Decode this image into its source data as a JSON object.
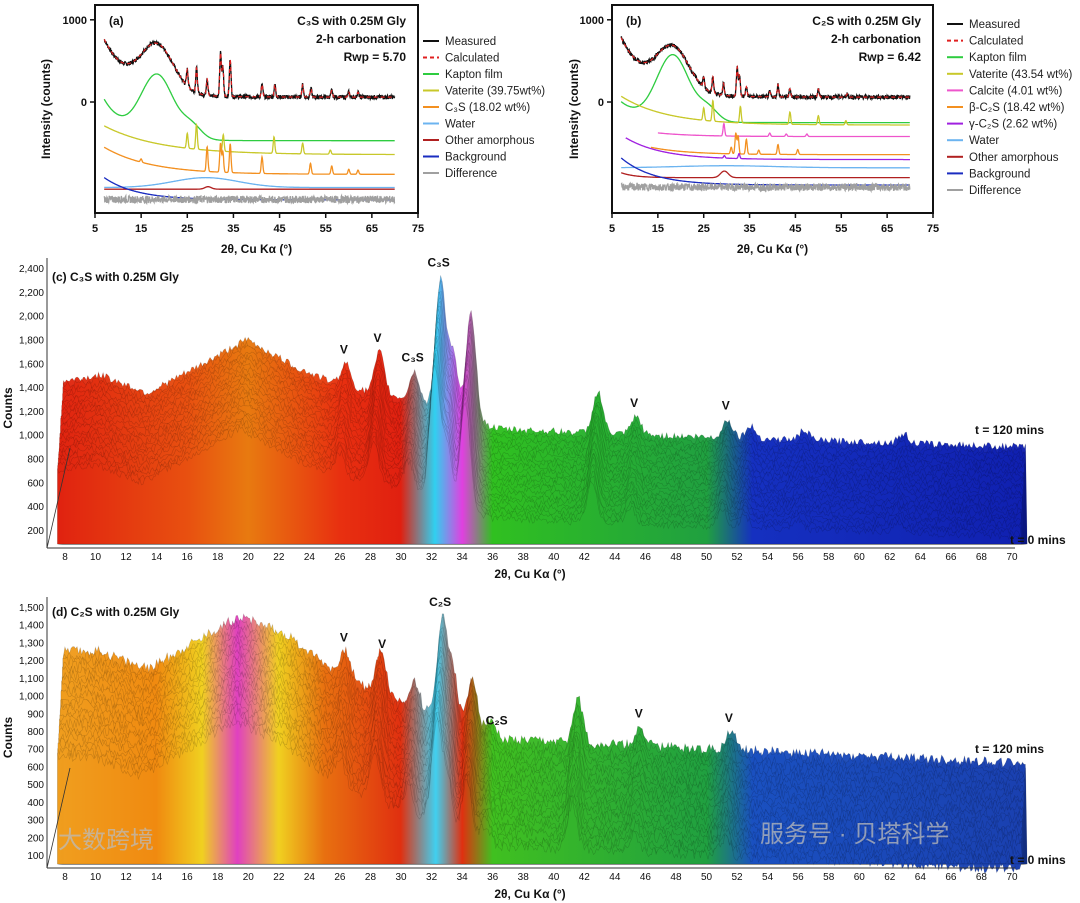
{
  "chart_data": [
    {
      "type": "line",
      "panel": "(a)",
      "title_lines": [
        "C₃S with 0.25M Gly",
        "2-h carbonation",
        "Rwp = 5.70"
      ],
      "xlabel": "2θ, Cu Kα (°)",
      "ylabel": "Intensity (counts)",
      "xlim": [
        5,
        75
      ],
      "ylim": [
        -1350,
        1180
      ],
      "xticks": [
        "5",
        "15",
        "25",
        "35",
        "45",
        "55",
        "65",
        "75"
      ],
      "yticks": [
        "0",
        "1000"
      ],
      "series": [
        {
          "name": "Measured",
          "color": "#111111",
          "offset": 60,
          "amp": 700,
          "decay": 6,
          "humps": [
            [
              18.5,
              550,
              5
            ]
          ],
          "noise": 25,
          "peaks": [
            [
              25,
              200
            ],
            [
              27,
              300
            ],
            [
              29.3,
              200
            ],
            [
              32.2,
              520
            ],
            [
              32.7,
              350
            ],
            [
              34.3,
              450
            ],
            [
              41.2,
              150
            ],
            [
              44,
              150
            ],
            [
              50,
              150
            ],
            [
              51.8,
              100
            ],
            [
              56.3,
              80
            ],
            [
              60,
              60
            ],
            [
              62,
              60
            ]
          ]
        },
        {
          "name": "Calculated",
          "color": "#e02020",
          "dash": true,
          "offset": 60,
          "amp": 700,
          "decay": 6,
          "humps": [
            [
              18.5,
              550,
              5
            ]
          ],
          "peaks": [
            [
              25,
              200
            ],
            [
              27,
              300
            ],
            [
              29.3,
              200
            ],
            [
              32.2,
              520
            ],
            [
              32.7,
              350
            ],
            [
              34.3,
              450
            ],
            [
              41.2,
              150
            ],
            [
              44,
              150
            ],
            [
              50,
              150
            ],
            [
              51.8,
              100
            ],
            [
              56.3,
              80
            ],
            [
              60,
              60
            ],
            [
              62,
              60
            ]
          ]
        },
        {
          "name": "Kapton film",
          "color": "#2ecc40",
          "offset": -470,
          "amp": 500,
          "decay": 5,
          "humps": [
            [
              18.5,
              760,
              5
            ],
            [
              26,
              150,
              3
            ]
          ]
        },
        {
          "name": "Vaterite (39.75wt%)",
          "color": "#c8c82a",
          "offset": -640,
          "amp": 350,
          "decay": 12,
          "peaks": [
            [
              25,
              180
            ],
            [
              27,
              300
            ],
            [
              32.8,
              200
            ],
            [
              43.8,
              200
            ],
            [
              50,
              130
            ],
            [
              56,
              50
            ]
          ]
        },
        {
          "name": "C₃S (18.02 wt%)",
          "color": "#f39020",
          "offset": -880,
          "amp": 330,
          "decay": 10,
          "peaks": [
            [
              15,
              40
            ],
            [
              29.3,
              300
            ],
            [
              32.2,
              350
            ],
            [
              32.7,
              250
            ],
            [
              34.3,
              350
            ],
            [
              41.2,
              200
            ],
            [
              51.7,
              130
            ],
            [
              56.3,
              100
            ],
            [
              60,
              60
            ],
            [
              62,
              50
            ]
          ]
        },
        {
          "name": "Water",
          "color": "#6cb4f0",
          "offset": -1040,
          "humps": [
            [
              29,
              120,
              10
            ]
          ]
        },
        {
          "name": "Other amorphous",
          "color": "#b02020",
          "offset": -1060,
          "humps": [
            [
              29.5,
              30,
              1
            ]
          ]
        },
        {
          "name": "Background",
          "color": "#1a2cc0",
          "offset": -1190,
          "amp": 270,
          "decay": 7
        },
        {
          "name": "Difference",
          "color": "#a0a0a0",
          "offset": -1185,
          "noise": 45
        }
      ]
    },
    {
      "type": "line",
      "panel": "(b)",
      "title_lines": [
        "C₂S with 0.25M Gly",
        "2-h carbonation",
        "Rwp = 6.42"
      ],
      "xlabel": "2θ, Cu Kα (°)",
      "ylabel": "Intensity (counts)",
      "xlim": [
        5,
        75
      ],
      "ylim": [
        -1350,
        1180
      ],
      "xticks": [
        "5",
        "15",
        "25",
        "35",
        "45",
        "55",
        "65",
        "75"
      ],
      "yticks": [
        "0",
        "1000"
      ],
      "series": [
        {
          "name": "Measured",
          "color": "#111111",
          "offset": 60,
          "amp": 720,
          "decay": 6,
          "humps": [
            [
              18.3,
              520,
              5
            ]
          ],
          "noise": 25,
          "peaks": [
            [
              25,
              120
            ],
            [
              27,
              200
            ],
            [
              29.3,
              150
            ],
            [
              32.3,
              350
            ],
            [
              32.8,
              250
            ],
            [
              34.3,
              120
            ],
            [
              39.4,
              60
            ],
            [
              41.2,
              150
            ],
            [
              43.8,
              100
            ],
            [
              50,
              100
            ],
            [
              56.3,
              40
            ]
          ]
        },
        {
          "name": "Calculated",
          "color": "#e02020",
          "dash": true,
          "offset": 60,
          "amp": 720,
          "decay": 6,
          "humps": [
            [
              18.3,
              520,
              5
            ]
          ],
          "peaks": [
            [
              25,
              120
            ],
            [
              27,
              200
            ],
            [
              29.3,
              150
            ],
            [
              32.3,
              350
            ],
            [
              32.8,
              250
            ],
            [
              34.3,
              120
            ],
            [
              39.4,
              60
            ],
            [
              41.2,
              150
            ],
            [
              43.8,
              100
            ],
            [
              50,
              100
            ],
            [
              56.3,
              40
            ]
          ]
        },
        {
          "name": "Kapton film",
          "color": "#2ecc40",
          "offset": -250,
          "amp": 250,
          "decay": 5,
          "humps": [
            [
              18.3,
              800,
              5
            ],
            [
              26,
              150,
              3
            ]
          ]
        },
        {
          "name": "Vaterite (43.54 wt%)",
          "color": "#c8c82a",
          "offset": -280,
          "amp": 350,
          "decay": 10,
          "peaks": [
            [
              25,
              150
            ],
            [
              27,
              250
            ],
            [
              33,
              200
            ],
            [
              43.8,
              150
            ],
            [
              50,
              110
            ],
            [
              56,
              50
            ]
          ]
        },
        {
          "name": "Calcite (4.01 wt%)",
          "color": "#ee55cc",
          "from": 15,
          "offset": -420,
          "amp": 120,
          "decay": 8,
          "peaks": [
            [
              29.4,
              150
            ],
            [
              39.4,
              40
            ],
            [
              43,
              30
            ],
            [
              47.5,
              30
            ]
          ]
        },
        {
          "name": "β-C₂S (18.42 wt%)",
          "color": "#f39020",
          "from": 13.5,
          "offset": -640,
          "amp": 200,
          "decay": 8,
          "peaks": [
            [
              31,
              80
            ],
            [
              32,
              250
            ],
            [
              32.5,
              220
            ],
            [
              34.3,
              180
            ],
            [
              37,
              50
            ],
            [
              41.2,
              120
            ],
            [
              45.5,
              60
            ]
          ]
        },
        {
          "name": "γ-C₂S (2.62 wt%)",
          "color": "#a020e0",
          "from": 8,
          "offset": -700,
          "amp": 300,
          "decay": 8,
          "peaks": [
            [
              29.5,
              30
            ],
            [
              32.7,
              60
            ]
          ]
        },
        {
          "name": "Water",
          "color": "#6cb4f0",
          "offset": -800,
          "humps": [
            [
              30,
              25,
              15
            ]
          ]
        },
        {
          "name": "Other amorphous",
          "color": "#b02020",
          "offset": -920,
          "amp": 60,
          "decay": 3,
          "humps": [
            [
              29.5,
              80,
              1.2
            ]
          ]
        },
        {
          "name": "Background",
          "color": "#1a2cc0",
          "offset": -1010,
          "amp": 330,
          "decay": 7
        },
        {
          "name": "Difference",
          "color": "#a0a0a0",
          "offset": -1035,
          "noise": 45
        }
      ]
    },
    {
      "type": "area",
      "panel": "(c) C₃S with 0.25M Gly",
      "xlabel": "2θ, Cu Kα (°)",
      "ylabel": "Counts",
      "xlim": [
        7,
        71
      ],
      "ylim": [
        50,
        2450
      ],
      "xticks": [
        "8",
        "10",
        "12",
        "14",
        "16",
        "18",
        "20",
        "22",
        "24",
        "26",
        "28",
        "30",
        "32",
        "34",
        "36",
        "38",
        "40",
        "42",
        "44",
        "46",
        "48",
        "50",
        "52",
        "54",
        "56",
        "58",
        "60",
        "62",
        "64",
        "66",
        "68",
        "70"
      ],
      "yticks": [
        "200",
        "400",
        "600",
        "800",
        "1,000",
        "1,200",
        "1,400",
        "1,600",
        "1,800",
        "2,000",
        "2,200",
        "2,400"
      ],
      "time_labels": {
        "end": "t = 120 mins",
        "start": "t = 0 mins"
      },
      "time_shift_counts": 750,
      "base": [
        [
          7.5,
          1450
        ],
        [
          10,
          1500
        ],
        [
          13,
          1350
        ],
        [
          16,
          1550
        ],
        [
          19.5,
          1800
        ],
        [
          23,
          1550
        ],
        [
          26,
          1400
        ],
        [
          30,
          1300
        ],
        [
          36,
          1050
        ],
        [
          45,
          1000
        ],
        [
          70,
          900
        ]
      ],
      "peaks": [
        [
          26,
          200
        ],
        [
          28.2,
          350
        ],
        [
          30.5,
          250
        ],
        [
          32.2,
          1100
        ],
        [
          33,
          500
        ],
        [
          34.2,
          900
        ],
        [
          42.5,
          350
        ],
        [
          45,
          150
        ],
        [
          51,
          150
        ],
        [
          52.5,
          100
        ],
        [
          56,
          80
        ],
        [
          62.5,
          80
        ]
      ],
      "colors": [
        [
          7,
          "#e02010"
        ],
        [
          16,
          "#e85010"
        ],
        [
          20,
          "#e87a10"
        ],
        [
          26,
          "#e83010"
        ],
        [
          30,
          "#e02010"
        ],
        [
          32.2,
          "#30d0f0"
        ],
        [
          34,
          "#e040e0"
        ],
        [
          36,
          "#30c020"
        ],
        [
          50,
          "#20a040"
        ],
        [
          53,
          "#1530c0"
        ],
        [
          71,
          "#1020b0"
        ]
      ],
      "annotations": [
        [
          26,
          "V"
        ],
        [
          28.2,
          "V"
        ],
        [
          30.5,
          "C₃S"
        ],
        [
          32.2,
          "C₃S"
        ],
        [
          45,
          "V"
        ],
        [
          51,
          "V"
        ]
      ]
    },
    {
      "type": "area",
      "panel": "(d) C₂S with 0.25M Gly",
      "xlabel": "2θ, Cu Kα (°)",
      "ylabel": "Counts",
      "xlim": [
        7,
        71
      ],
      "ylim": [
        30,
        1560
      ],
      "xticks": [
        "8",
        "10",
        "12",
        "14",
        "16",
        "18",
        "20",
        "22",
        "24",
        "26",
        "28",
        "30",
        "32",
        "34",
        "36",
        "38",
        "40",
        "42",
        "44",
        "46",
        "48",
        "50",
        "52",
        "54",
        "56",
        "58",
        "60",
        "62",
        "64",
        "66",
        "68",
        "70"
      ],
      "yticks": [
        "100",
        "200",
        "300",
        "400",
        "500",
        "600",
        "700",
        "800",
        "900",
        "1,000",
        "1,100",
        "1,200",
        "1,300",
        "1,400",
        "1,500"
      ],
      "time_labels": {
        "end": "t = 120 mins",
        "start": "t = 0 mins"
      },
      "time_shift_counts": 600,
      "base": [
        [
          7.5,
          1250
        ],
        [
          10,
          1250
        ],
        [
          13,
          1150
        ],
        [
          16,
          1300
        ],
        [
          19,
          1450
        ],
        [
          22,
          1350
        ],
        [
          26,
          1100
        ],
        [
          30,
          950
        ],
        [
          36,
          750
        ],
        [
          45,
          720
        ],
        [
          70,
          620
        ]
      ],
      "peaks": [
        [
          26,
          150
        ],
        [
          28.3,
          250
        ],
        [
          30.5,
          150
        ],
        [
          32.3,
          550
        ],
        [
          33,
          300
        ],
        [
          34.3,
          300
        ],
        [
          35.5,
          100
        ],
        [
          41.2,
          250
        ],
        [
          45.3,
          100
        ],
        [
          51.2,
          100
        ]
      ],
      "colors": [
        [
          7,
          "#f0a020"
        ],
        [
          14,
          "#f08a10"
        ],
        [
          17,
          "#f0d020"
        ],
        [
          19.3,
          "#e040c0"
        ],
        [
          22,
          "#f0d020"
        ],
        [
          25,
          "#e87010"
        ],
        [
          30,
          "#e03010"
        ],
        [
          32.3,
          "#40d0f0"
        ],
        [
          34,
          "#e03010"
        ],
        [
          36,
          "#40c020"
        ],
        [
          50,
          "#20a040"
        ],
        [
          53,
          "#1a50c0"
        ],
        [
          71,
          "#1a40b0"
        ]
      ],
      "annotations": [
        [
          26,
          "V"
        ],
        [
          28.5,
          "V"
        ],
        [
          32.3,
          "C₂S"
        ],
        [
          36,
          "C₂S"
        ],
        [
          45.3,
          "V"
        ],
        [
          51.2,
          "V"
        ]
      ]
    }
  ],
  "watermark": {
    "left": "大数跨境",
    "right": "服务号 · 贝塔科学"
  }
}
